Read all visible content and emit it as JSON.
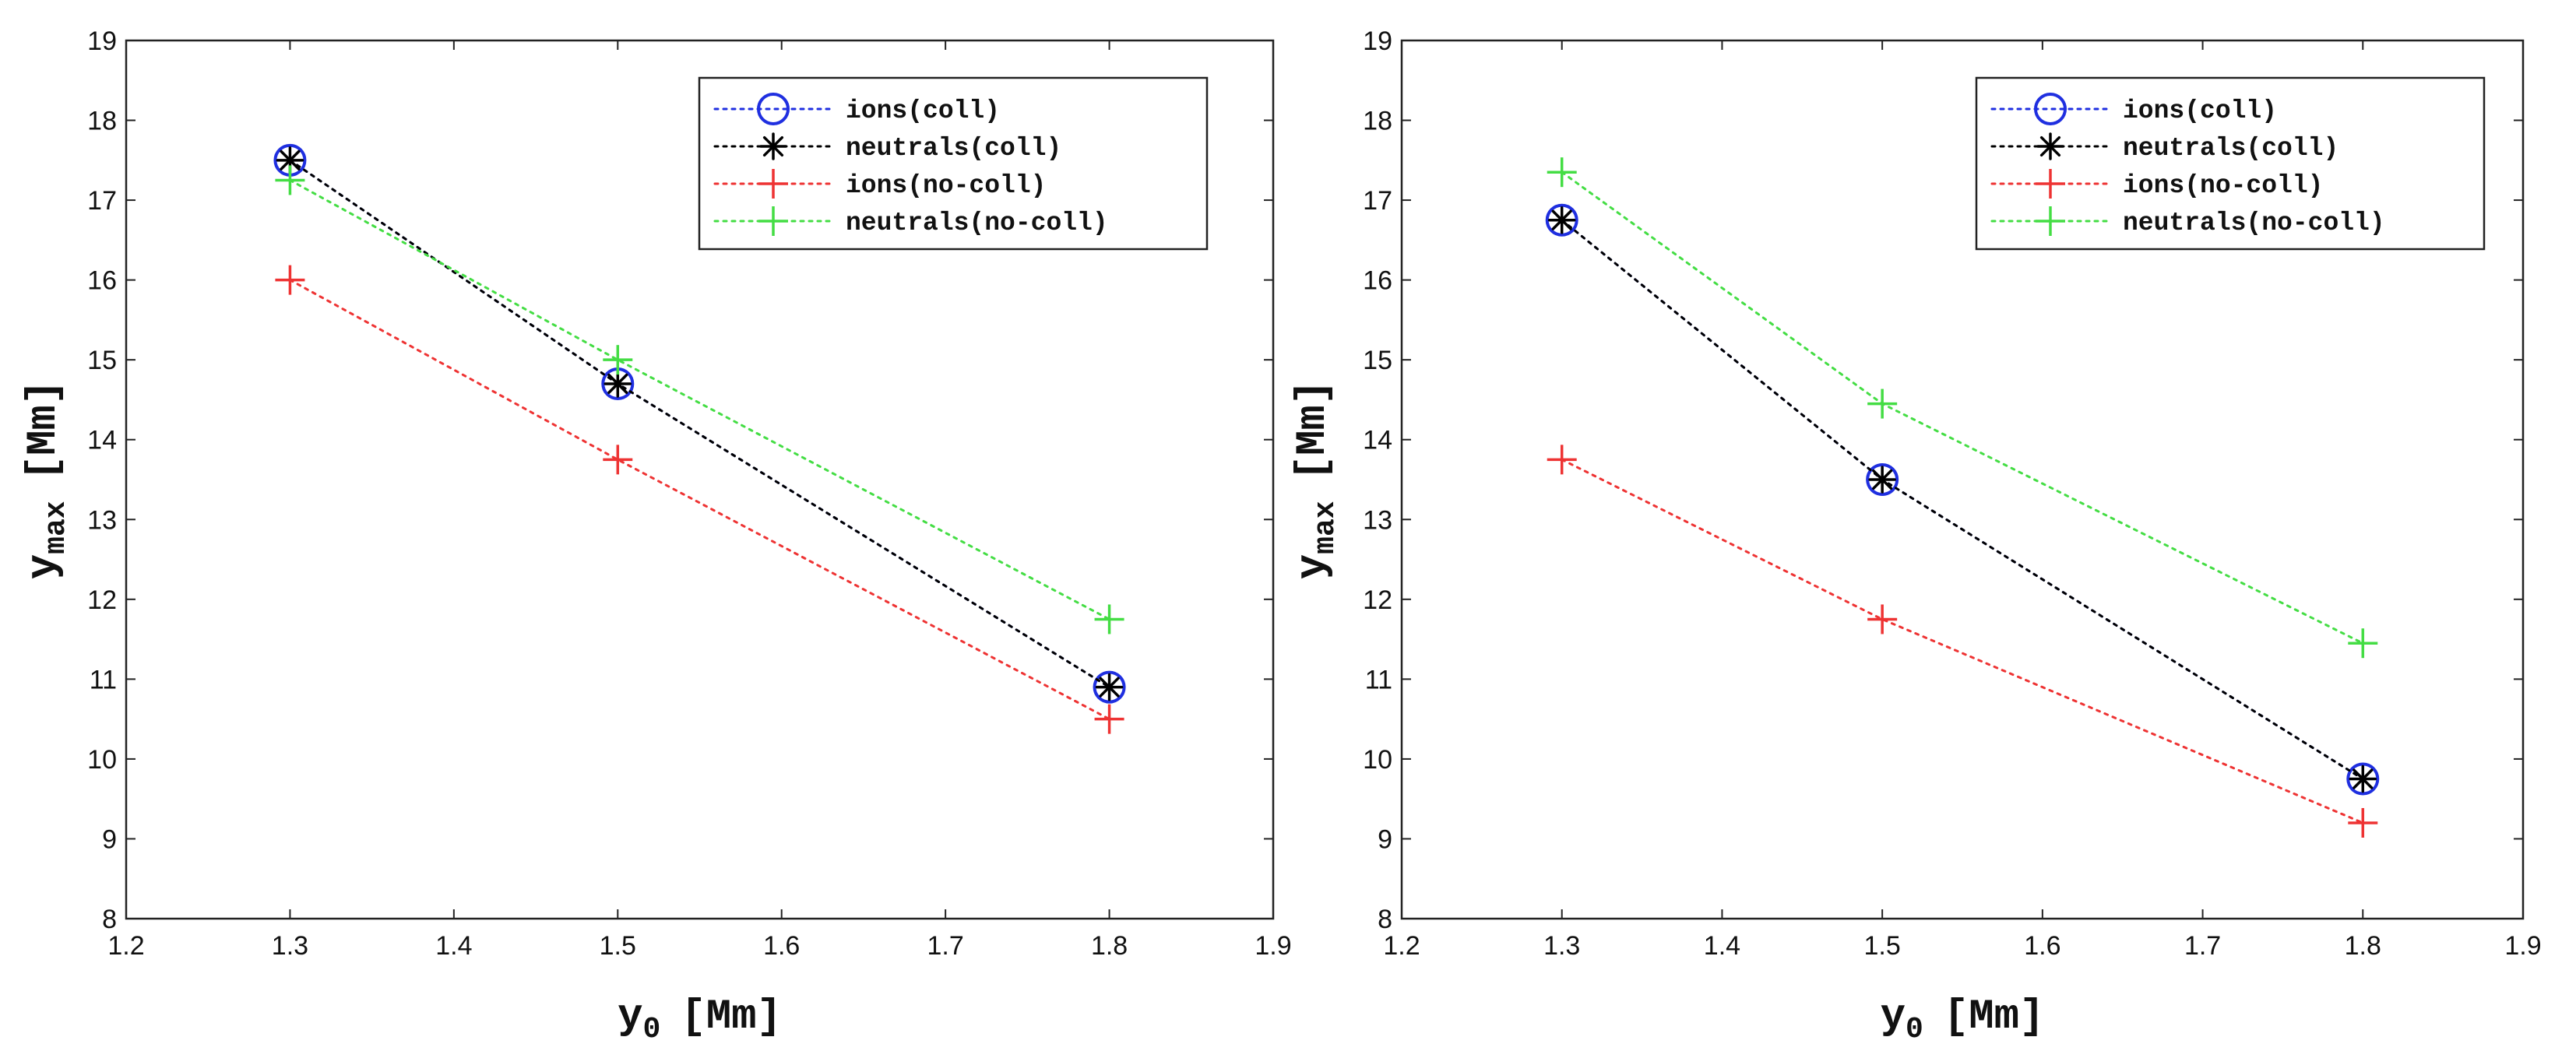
{
  "chart_data": [
    {
      "type": "line",
      "title": "",
      "xlabel": {
        "main": "y",
        "sub": "0",
        "unit": "[Mm]"
      },
      "ylabel": {
        "main": "y",
        "sub": "max",
        "unit": "[Mm]"
      },
      "xlim": [
        1.2,
        1.9
      ],
      "ylim": [
        8,
        19
      ],
      "xticks": [
        "1.2",
        "1.3",
        "1.4",
        "1.5",
        "1.6",
        "1.7",
        "1.8",
        "1.9"
      ],
      "yticks": [
        "8",
        "9",
        "10",
        "11",
        "12",
        "13",
        "14",
        "15",
        "16",
        "17",
        "18",
        "19"
      ],
      "legend_position": "top-right",
      "x": [
        1.3,
        1.5,
        1.8
      ],
      "series": [
        {
          "name": "ions(coll)",
          "color": "#1f2fe0",
          "marker": "circle",
          "values": [
            17.5,
            14.7,
            10.9
          ]
        },
        {
          "name": "neutrals(coll)",
          "color": "#000000",
          "marker": "asterisk",
          "values": [
            17.5,
            14.7,
            10.9
          ]
        },
        {
          "name": "ions(no-coll)",
          "color": "#ee3333",
          "marker": "plus",
          "values": [
            16.0,
            13.75,
            10.5
          ]
        },
        {
          "name": "neutrals(no-coll)",
          "color": "#44dd44",
          "marker": "plus",
          "values": [
            17.25,
            15.0,
            11.75
          ]
        }
      ]
    },
    {
      "type": "line",
      "title": "",
      "xlabel": {
        "main": "y",
        "sub": "0",
        "unit": "[Mm]"
      },
      "ylabel": {
        "main": "y",
        "sub": "max",
        "unit": "[Mm]"
      },
      "xlim": [
        1.2,
        1.9
      ],
      "ylim": [
        8,
        19
      ],
      "xticks": [
        "1.2",
        "1.3",
        "1.4",
        "1.5",
        "1.6",
        "1.7",
        "1.8",
        "1.9"
      ],
      "yticks": [
        "8",
        "9",
        "10",
        "11",
        "12",
        "13",
        "14",
        "15",
        "16",
        "17",
        "18",
        "19"
      ],
      "legend_position": "top-right",
      "x": [
        1.3,
        1.5,
        1.8
      ],
      "series": [
        {
          "name": "ions(coll)",
          "color": "#1f2fe0",
          "marker": "circle",
          "values": [
            16.75,
            13.5,
            9.75
          ]
        },
        {
          "name": "neutrals(coll)",
          "color": "#000000",
          "marker": "asterisk",
          "values": [
            16.75,
            13.5,
            9.75
          ]
        },
        {
          "name": "ions(no-coll)",
          "color": "#ee3333",
          "marker": "plus",
          "values": [
            13.75,
            11.75,
            9.2
          ]
        },
        {
          "name": "neutrals(no-coll)",
          "color": "#44dd44",
          "marker": "plus",
          "values": [
            17.35,
            14.45,
            11.45
          ]
        }
      ]
    }
  ]
}
